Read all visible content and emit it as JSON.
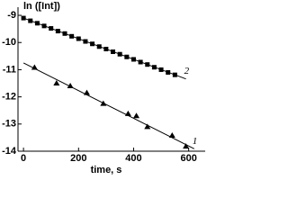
{
  "chart_data": {
    "type": "scatter",
    "y_label": "ln ([Int])",
    "x_label": "time, s",
    "xlim": [
      -20,
      660
    ],
    "ylim": [
      -14,
      -8.7
    ],
    "xticks": [
      0,
      200,
      400,
      600
    ],
    "yticks": [
      -9,
      -10,
      -11,
      -12,
      -13,
      -14
    ],
    "series": [
      {
        "name": "1",
        "color": "#000000",
        "marker": "triangle",
        "x": [
          40,
          120,
          170,
          230,
          290,
          380,
          410,
          450,
          540,
          590
        ],
        "values": [
          -10.92,
          -11.5,
          -11.6,
          -11.85,
          -12.25,
          -12.62,
          -12.7,
          -13.1,
          -13.42,
          -13.82
        ],
        "fit_x": [
          0,
          620
        ],
        "fit_values": [
          -10.75,
          -13.91
        ]
      },
      {
        "name": "2",
        "color": "#000000",
        "marker": "square",
        "x": [
          0,
          25,
          50,
          75,
          100,
          125,
          150,
          175,
          200,
          225,
          250,
          275,
          300,
          325,
          350,
          375,
          400,
          425,
          450,
          475,
          500,
          525,
          550
        ],
        "values": [
          -9.1,
          -9.2,
          -9.29,
          -9.39,
          -9.48,
          -9.58,
          -9.67,
          -9.77,
          -9.86,
          -9.96,
          -10.05,
          -10.15,
          -10.24,
          -10.34,
          -10.43,
          -10.53,
          -10.62,
          -10.72,
          -10.81,
          -10.91,
          -11.0,
          -11.1,
          -11.19
        ],
        "fit_x": [
          0,
          590
        ],
        "fit_values": [
          -9.1,
          -11.34
        ]
      }
    ]
  }
}
